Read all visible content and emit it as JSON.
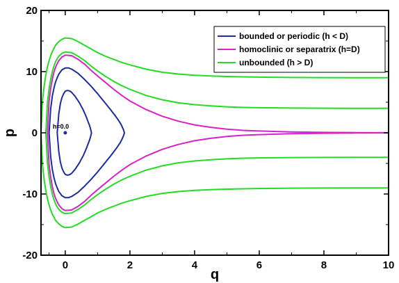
{
  "chart_data": {
    "type": "line",
    "title": "",
    "xlabel": "q",
    "ylabel": "p",
    "xlim": [
      -0.75,
      10
    ],
    "ylim": [
      -20,
      20
    ],
    "x_ticks": [
      "0",
      "2",
      "4",
      "6",
      "8",
      "10"
    ],
    "y_ticks": [
      "-20",
      "-10",
      "0",
      "10",
      "20"
    ],
    "grid": false,
    "legend_position": "top-right",
    "legend": [
      {
        "label": "bounded or periodic (h < D)",
        "color": "#1c2ca0"
      },
      {
        "label": "homoclinic or separatrix (h=D)",
        "color": "#d722c8"
      },
      {
        "label": "unbounded (h > D)",
        "color": "#22dd22"
      }
    ],
    "annotation": {
      "text": "h=0.0",
      "x": 0,
      "y": 0
    },
    "series": [
      {
        "group": "bounded or periodic (h < D)",
        "color": "#1c2ca0",
        "x": [
          -0.25,
          -0.2,
          -0.15,
          -0.1,
          -0.05,
          0,
          0.05,
          0.1,
          0.15,
          0.2,
          0.25,
          0.3,
          0.35,
          0.4,
          0.45,
          0.5,
          0.55,
          0.6,
          0.65,
          0.7,
          0.75,
          0.79,
          0.8,
          0.81
        ],
        "y_upper": [
          0,
          3.1,
          4.8,
          5.8,
          6.4,
          6.8,
          6.9,
          6.9,
          6.8,
          6.6,
          6.3,
          6.0,
          5.6,
          5.2,
          4.8,
          4.3,
          3.8,
          3.2,
          2.6,
          1.9,
          1.2,
          0.5,
          0.25,
          0
        ],
        "y_lower": [
          0,
          -3.1,
          -4.8,
          -5.8,
          -6.4,
          -6.8,
          -6.9,
          -6.9,
          -6.8,
          -6.6,
          -6.3,
          -6.0,
          -5.6,
          -5.2,
          -4.8,
          -4.3,
          -3.8,
          -3.2,
          -2.6,
          -1.9,
          -1.2,
          -0.5,
          -0.25,
          0
        ]
      },
      {
        "group": "bounded or periodic (h < D)",
        "color": "#1c2ca0",
        "x": [
          -0.5,
          -0.45,
          -0.4,
          -0.35,
          -0.3,
          -0.25,
          -0.2,
          -0.1,
          0,
          0.1,
          0.2,
          0.4,
          0.6,
          0.8,
          1.0,
          1.2,
          1.4,
          1.6,
          1.7,
          1.75,
          1.8,
          1.83
        ],
        "y_upper": [
          0,
          4.0,
          6.0,
          7.3,
          8.3,
          9.0,
          9.6,
          10.3,
          10.6,
          10.6,
          10.4,
          9.7,
          8.7,
          7.6,
          6.4,
          5.1,
          3.8,
          2.4,
          1.6,
          1.1,
          0.5,
          0
        ],
        "y_lower": [
          0,
          -4.0,
          -6.0,
          -7.3,
          -8.3,
          -9.0,
          -9.6,
          -10.3,
          -10.6,
          -10.6,
          -10.4,
          -9.7,
          -8.7,
          -7.6,
          -6.4,
          -5.1,
          -3.8,
          -2.4,
          -1.6,
          -1.1,
          -0.5,
          0
        ]
      },
      {
        "group": "homoclinic or separatrix (h=D)",
        "color": "#d722c8",
        "x": [
          -0.55,
          -0.5,
          -0.45,
          -0.4,
          -0.35,
          -0.3,
          -0.25,
          -0.2,
          -0.1,
          0,
          0.2,
          0.4,
          0.6,
          0.8,
          1.0,
          1.25,
          1.5,
          1.75,
          2.0,
          2.5,
          3.0,
          3.5,
          4.0,
          4.5,
          5.0,
          5.5,
          6.0,
          7.0,
          8.0,
          9.0,
          10.0
        ],
        "y_upper": [
          0,
          5.2,
          7.3,
          8.8,
          9.9,
          10.7,
          11.3,
          11.8,
          12.4,
          12.7,
          12.6,
          12.0,
          11.2,
          10.2,
          9.3,
          8.2,
          7.1,
          6.1,
          5.2,
          3.8,
          2.7,
          1.9,
          1.3,
          0.9,
          0.6,
          0.4,
          0.3,
          0.15,
          0.07,
          0.03,
          0.01
        ],
        "y_lower": [
          0,
          -5.2,
          -7.3,
          -8.8,
          -9.9,
          -10.7,
          -11.3,
          -11.8,
          -12.4,
          -12.7,
          -12.6,
          -12.0,
          -11.2,
          -10.2,
          -9.3,
          -8.2,
          -7.1,
          -6.1,
          -5.2,
          -3.8,
          -2.7,
          -1.9,
          -1.3,
          -0.9,
          -0.6,
          -0.4,
          -0.3,
          -0.15,
          -0.07,
          -0.03,
          -0.01
        ]
      },
      {
        "group": "unbounded (h > D)",
        "color": "#22dd22",
        "x": [
          -0.6,
          -0.55,
          -0.5,
          -0.45,
          -0.4,
          -0.35,
          -0.3,
          -0.25,
          -0.2,
          -0.1,
          0,
          0.2,
          0.4,
          0.6,
          0.8,
          1.0,
          1.25,
          1.5,
          1.75,
          2.0,
          2.5,
          3.0,
          3.5,
          4.0,
          4.5,
          5.0,
          5.5,
          6.0,
          7.0,
          8.0,
          9.0,
          10.0
        ],
        "y_upper": [
          0,
          5.0,
          7.2,
          8.8,
          10.0,
          10.9,
          11.6,
          12.1,
          12.5,
          13.0,
          13.2,
          13.1,
          12.5,
          11.8,
          10.9,
          10.1,
          9.2,
          8.4,
          7.7,
          7.1,
          6.1,
          5.4,
          4.9,
          4.6,
          4.4,
          4.25,
          4.15,
          4.1,
          4.05,
          4.02,
          4.01,
          4.0
        ],
        "y_lower": [
          0,
          -5.0,
          -7.2,
          -8.8,
          -10.0,
          -10.9,
          -11.6,
          -12.1,
          -12.5,
          -13.0,
          -13.2,
          -13.1,
          -12.5,
          -11.8,
          -10.9,
          -10.1,
          -9.2,
          -8.4,
          -7.7,
          -7.1,
          -6.1,
          -5.4,
          -4.9,
          -4.6,
          -4.4,
          -4.25,
          -4.15,
          -4.1,
          -4.05,
          -4.02,
          -4.01,
          -4.0
        ]
      },
      {
        "group": "unbounded (h > D)",
        "color": "#22dd22",
        "x": [
          -0.75,
          -0.7,
          -0.65,
          -0.6,
          -0.55,
          -0.5,
          -0.45,
          -0.4,
          -0.3,
          -0.2,
          -0.1,
          0,
          0.2,
          0.4,
          0.6,
          0.8,
          1.0,
          1.25,
          1.5,
          1.75,
          2.0,
          2.5,
          3.0,
          3.5,
          4.0,
          4.5,
          5.0,
          5.5,
          6.0,
          7.0,
          8.0,
          9.0,
          10.0
        ],
        "y_upper": [
          0,
          5.5,
          7.8,
          9.5,
          10.8,
          11.8,
          12.6,
          13.3,
          14.3,
          14.9,
          15.3,
          15.5,
          15.4,
          14.9,
          14.3,
          13.7,
          13.1,
          12.5,
          12.0,
          11.5,
          11.1,
          10.4,
          9.9,
          9.6,
          9.4,
          9.3,
          9.2,
          9.15,
          9.1,
          9.05,
          9.02,
          9.01,
          9.0
        ],
        "y_lower": [
          0,
          -5.5,
          -7.8,
          -9.5,
          -10.8,
          -11.8,
          -12.6,
          -13.3,
          -14.3,
          -14.9,
          -15.3,
          -15.5,
          -15.4,
          -14.9,
          -14.3,
          -13.7,
          -13.1,
          -12.5,
          -12.0,
          -11.5,
          -11.1,
          -10.4,
          -9.9,
          -9.6,
          -9.4,
          -9.3,
          -9.2,
          -9.15,
          -9.1,
          -9.05,
          -9.02,
          -9.01,
          -9.0
        ]
      }
    ]
  }
}
